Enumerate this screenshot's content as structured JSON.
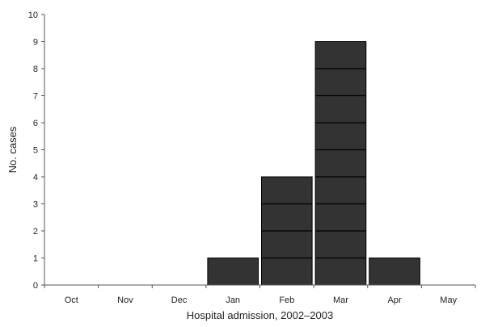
{
  "chart_data": {
    "type": "bar",
    "xlabel": "Hospital admission, 2002–2003",
    "ylabel": "No. cases",
    "categories": [
      "Oct",
      "Nov",
      "Dec",
      "Jan",
      "Feb",
      "Mar",
      "Apr",
      "May"
    ],
    "values": [
      0,
      0,
      0,
      1,
      4,
      9,
      1,
      0
    ],
    "ylim": [
      0,
      10
    ],
    "yticks": [
      "0",
      "1",
      "2",
      "3",
      "4",
      "5",
      "6",
      "7",
      "8",
      "9",
      "10"
    ],
    "grid": false,
    "legend": "none",
    "bars_stacked_by_case": true,
    "colors": {
      "bar_fill": "#333333",
      "bar_divider": "#000000",
      "axis": "#555555",
      "text": "#222222"
    }
  }
}
